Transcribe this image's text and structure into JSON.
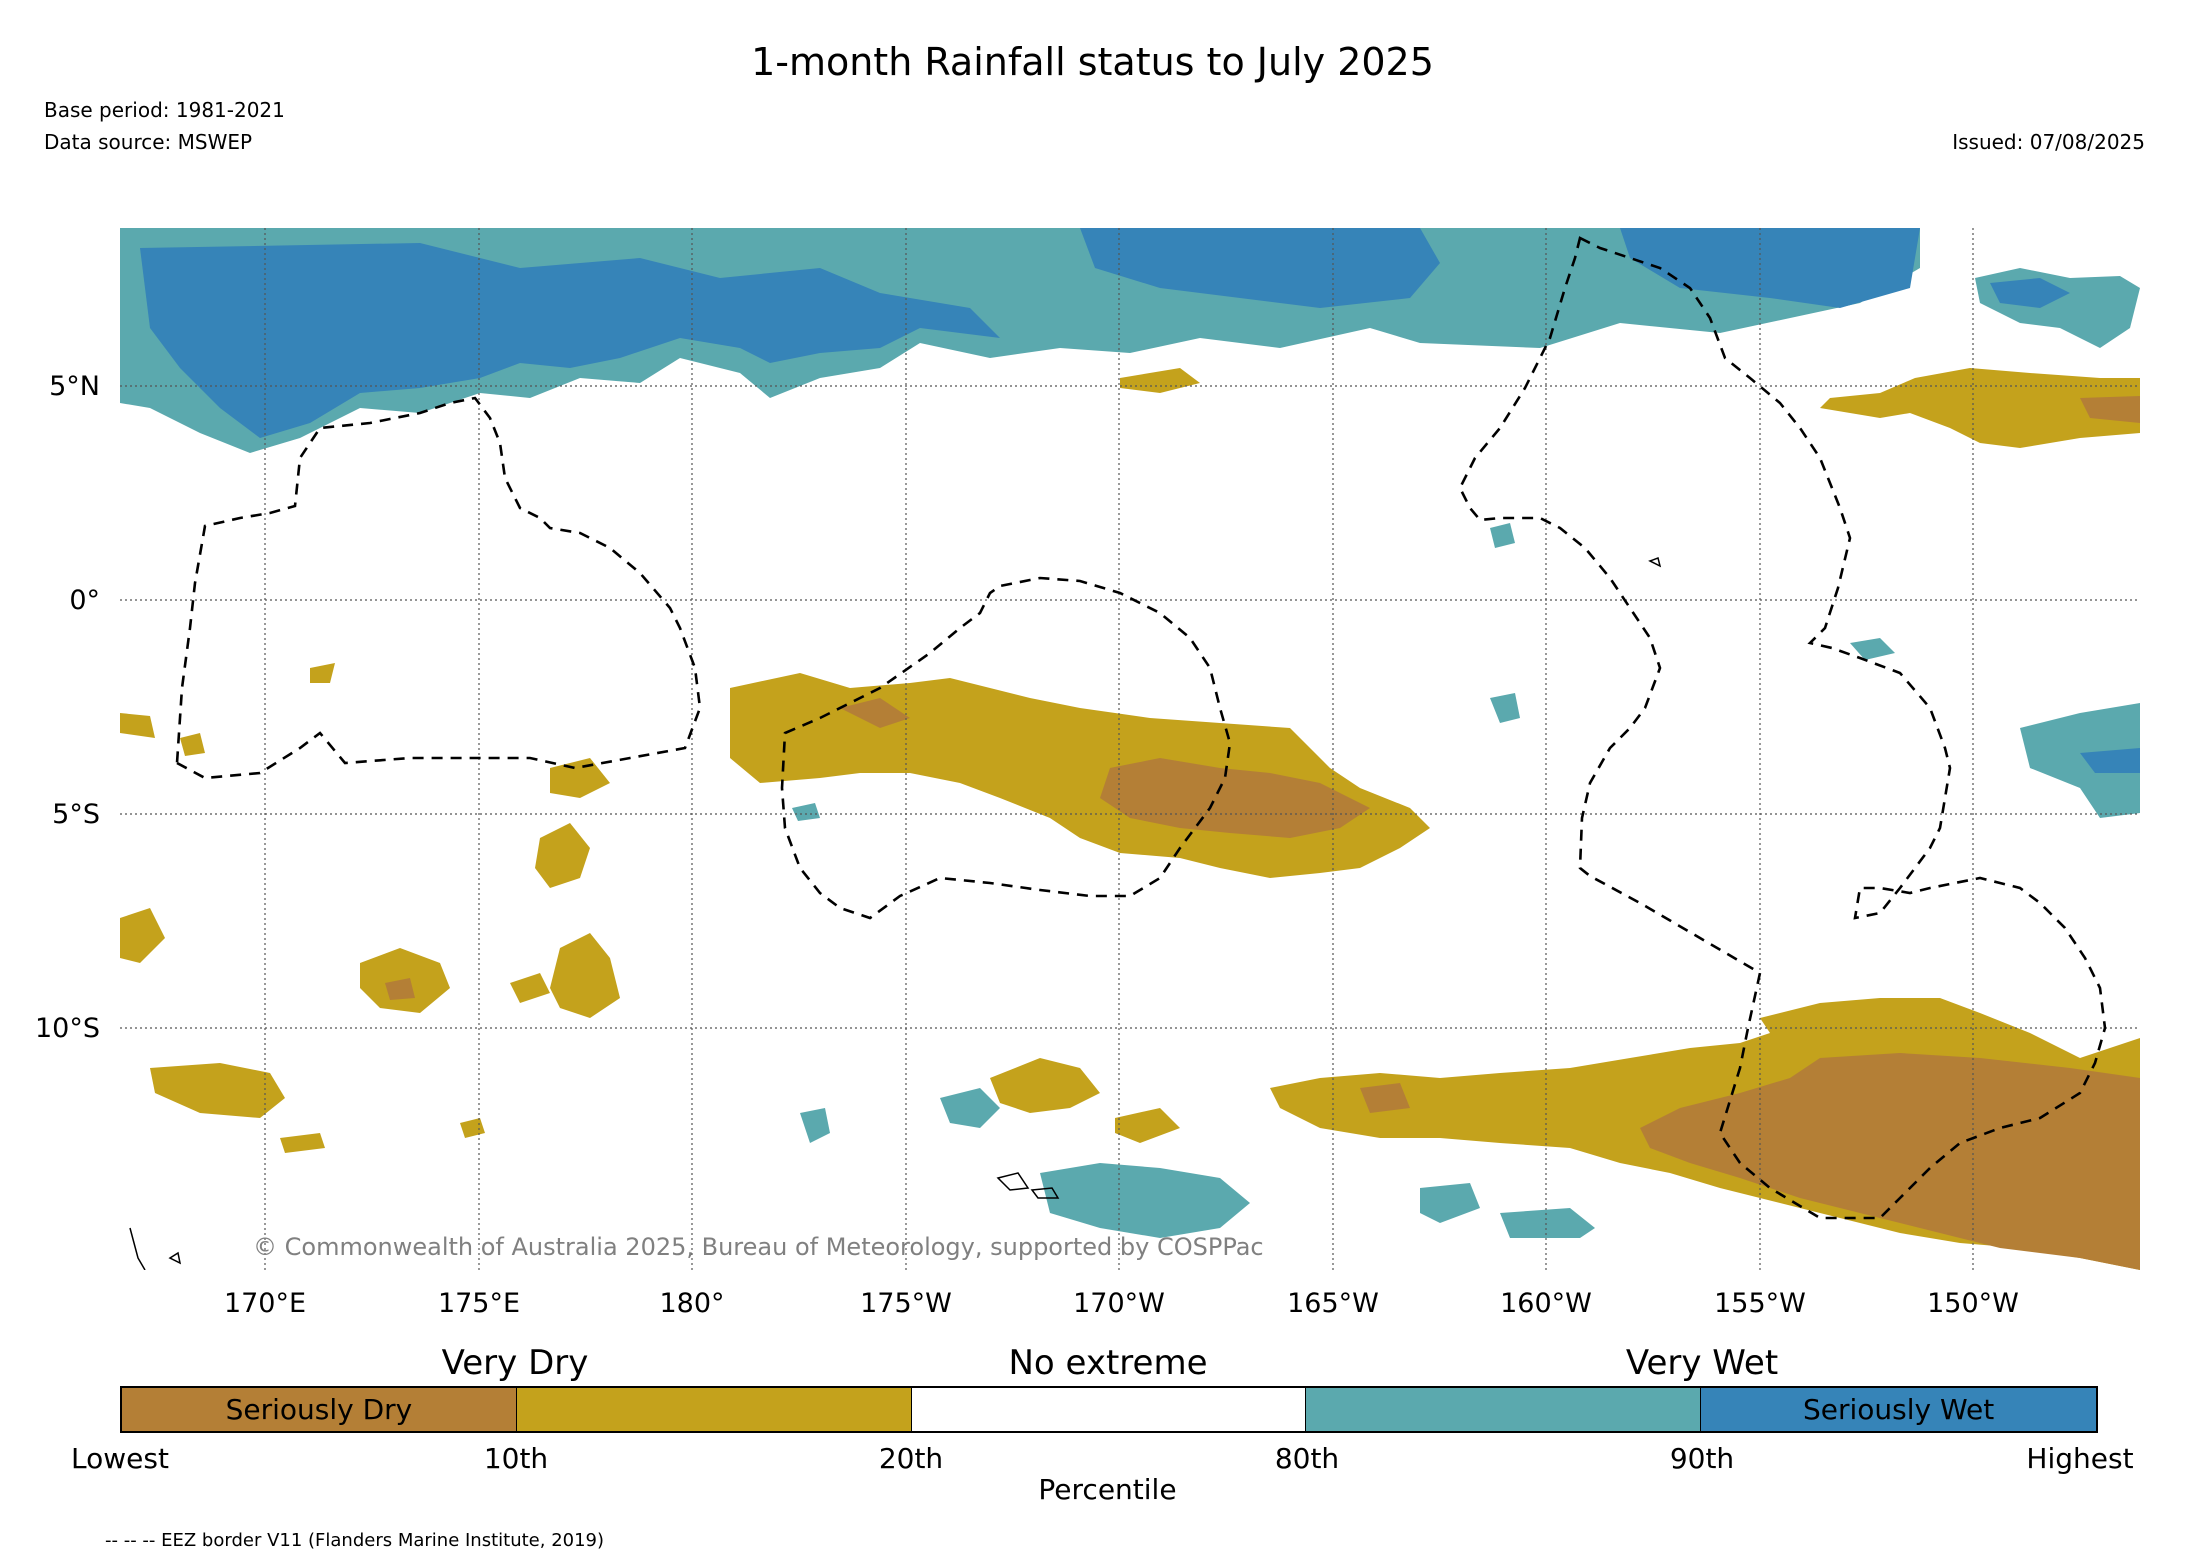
{
  "title": "1-month Rainfall status to July 2025",
  "base_period": "Base period: 1981-2021",
  "data_source": "Data source: MSWEP",
  "issued": "Issued: 07/08/2025",
  "copyright": "© Commonwealth of Australia 2025, Bureau of Meteorology, supported by COSPPac",
  "map": {
    "lat_labels": [
      "5°N",
      "0°",
      "5°S",
      "10°S"
    ],
    "lon_labels": [
      "170°E",
      "175°E",
      "180°",
      "175°W",
      "170°W",
      "165°W",
      "160°W",
      "155°W",
      "150°W"
    ],
    "lat_values": [
      5,
      0,
      -5,
      -10
    ],
    "lon_values": [
      170,
      175,
      180,
      -175,
      -170,
      -165,
      -160,
      -155,
      -150
    ],
    "extent": {
      "lon_min": 166.6,
      "lon_max": -146.1,
      "lat_min": -15.6,
      "lat_max": 8.7
    },
    "colors": {
      "seriously_dry": "#b47f36",
      "very_dry": "#c4a21c",
      "no_extreme": "#ffffff",
      "very_wet": "#5ba9ae",
      "seriously_wet": "#3684b8"
    }
  },
  "legend": {
    "categories": [
      "Very Dry",
      "No extreme",
      "Very Wet"
    ],
    "segments": [
      {
        "label": "Seriously Dry",
        "color": "#b47f36"
      },
      {
        "label": "",
        "color": "#c4a21c"
      },
      {
        "label": "",
        "color": "#ffffff"
      },
      {
        "label": "",
        "color": "#5ba9ae"
      },
      {
        "label": "Seriously Wet",
        "color": "#3684b8"
      }
    ],
    "ticks": [
      "Lowest",
      "10th",
      "20th",
      "80th",
      "90th",
      "Highest"
    ],
    "axis_label": "Percentile"
  },
  "eez_note": "-- -- -- EEZ border V11 (Flanders Marine Institute, 2019)"
}
